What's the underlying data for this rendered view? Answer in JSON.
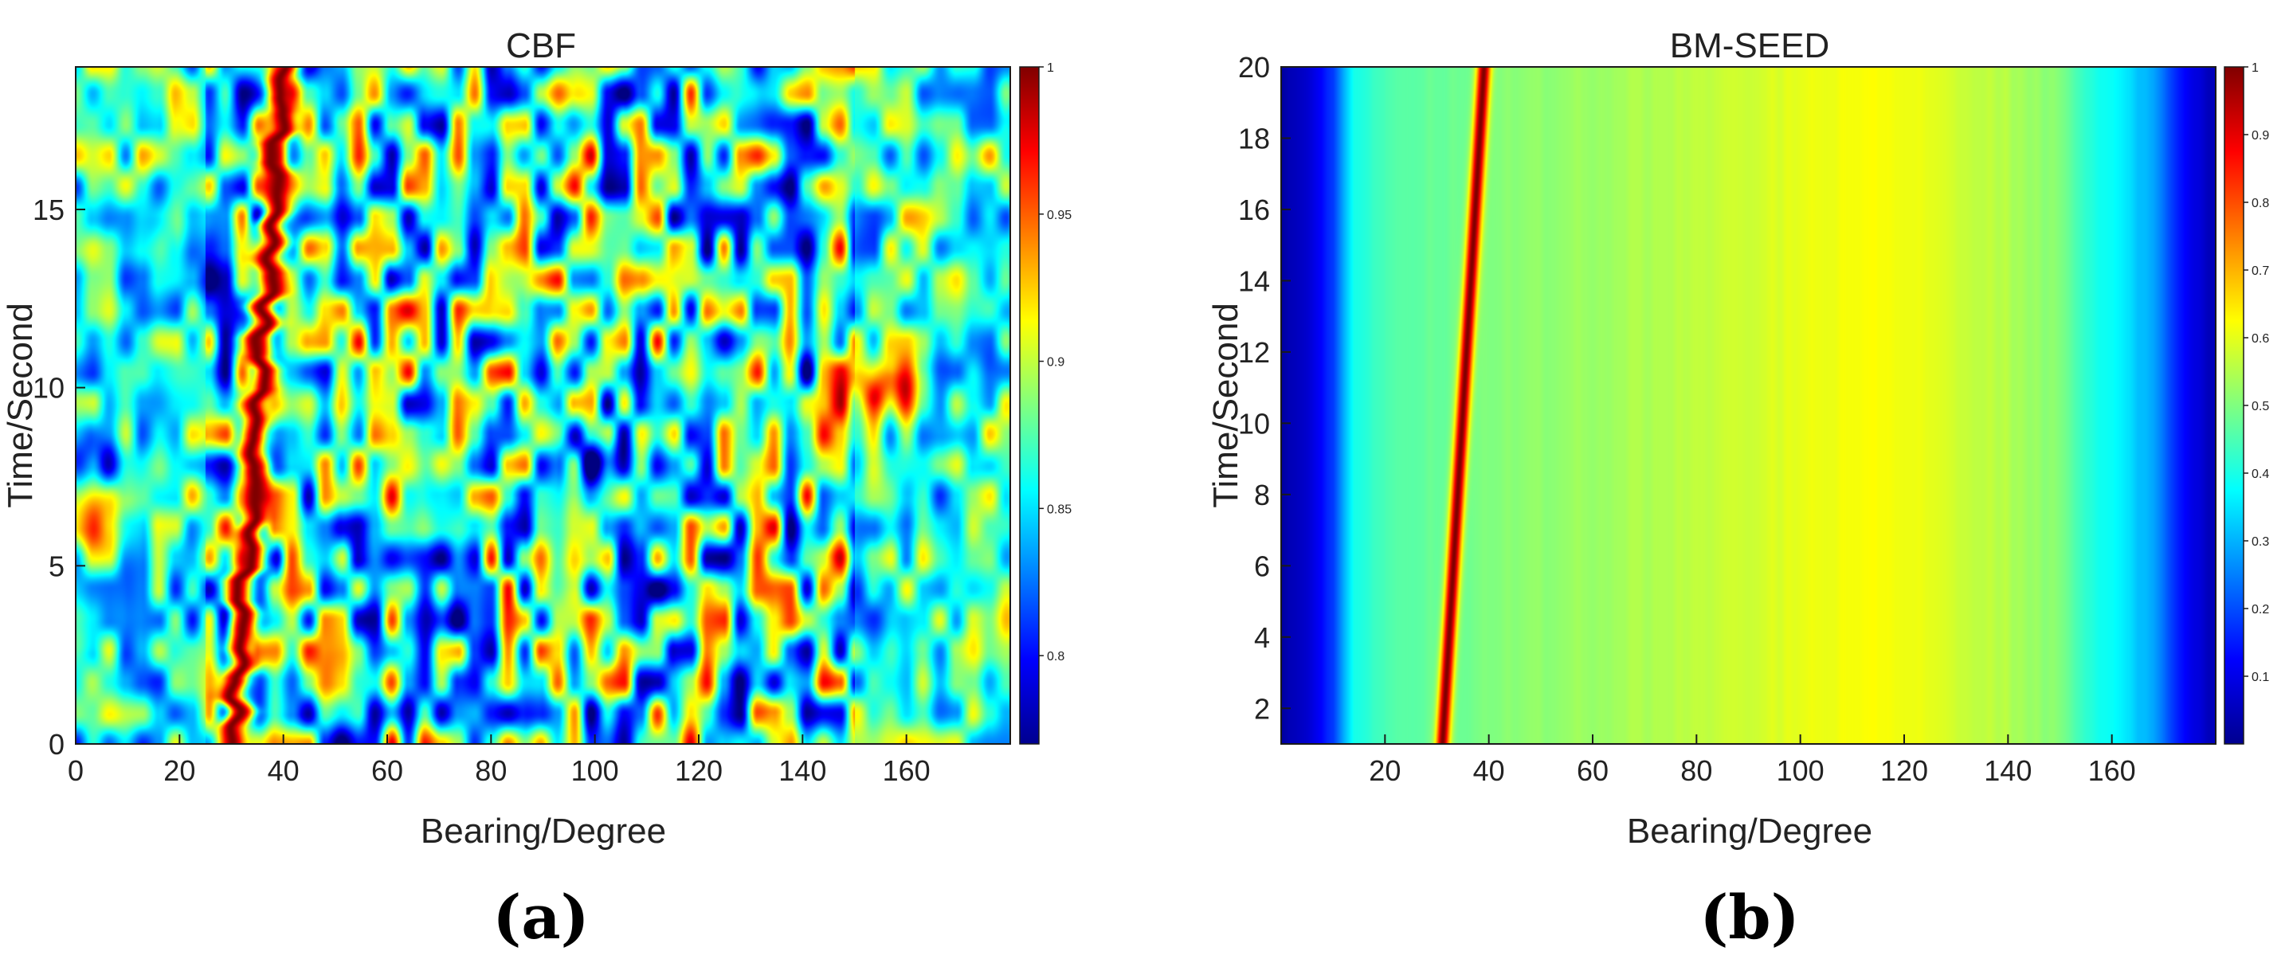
{
  "colors": {
    "colormap": "jet",
    "axis": "#1a1a1a",
    "background": "#ffffff"
  },
  "chart_data": [
    {
      "type": "heatmap",
      "panel_label": "(a)",
      "title": "CBF",
      "xlabel": "Bearing/Degree",
      "ylabel": "Time/Second",
      "xlim": [
        0,
        180
      ],
      "ylim": [
        0,
        19
      ],
      "xticks": [
        0,
        20,
        40,
        60,
        80,
        100,
        120,
        140,
        160
      ],
      "yticks": [
        0,
        5,
        10,
        15
      ],
      "clim": [
        0.77,
        1.0
      ],
      "colorbar_ticks": [
        0.8,
        0.85,
        0.9,
        0.95,
        1
      ],
      "colorbar_labels": [
        "0.8",
        "0.85",
        "0.9",
        "0.95",
        "1"
      ],
      "grid": false,
      "legend": "none",
      "description_peak_track": {
        "bearing_at_t0": 30,
        "bearing_at_tmax": 40
      },
      "features": [
        {
          "label": "bright track",
          "bearing_start": 30,
          "bearing_end": 40
        },
        {
          "label": "hot spot",
          "bearing": 156,
          "time": 10,
          "value": 0.97
        },
        {
          "label": "hot spot",
          "bearing": 5,
          "time": 6,
          "value": 0.95
        },
        {
          "label": "cold spot",
          "bearing": 2,
          "time": 8,
          "value": 0.81
        },
        {
          "label": "cold spot",
          "bearing": 100,
          "time": 8,
          "value": 0.79
        }
      ]
    },
    {
      "type": "heatmap",
      "panel_label": "(b)",
      "title": "BM-SEED",
      "xlabel": "Bearing/Degree",
      "ylabel": "Time/Second",
      "xlim": [
        0,
        180
      ],
      "ylim": [
        1,
        20
      ],
      "xticks": [
        20,
        40,
        60,
        80,
        100,
        120,
        140,
        160
      ],
      "yticks": [
        2,
        4,
        6,
        8,
        10,
        12,
        14,
        16,
        18,
        20
      ],
      "clim": [
        0,
        1
      ],
      "colorbar_ticks": [
        0.1,
        0.2,
        0.3,
        0.4,
        0.5,
        0.6,
        0.7,
        0.8,
        0.9,
        1
      ],
      "colorbar_labels": [
        "0.1",
        "0.2",
        "0.3",
        "0.4",
        "0.5",
        "0.6",
        "0.7",
        "0.8",
        "0.9",
        "1"
      ],
      "grid": false,
      "legend": "none",
      "bearing_profile": {
        "bearing": [
          0,
          5,
          10,
          14,
          20,
          40,
          60,
          80,
          100,
          110,
          120,
          140,
          150,
          155,
          160,
          168,
          174,
          180
        ],
        "value": [
          0.03,
          0.08,
          0.18,
          0.4,
          0.45,
          0.5,
          0.53,
          0.56,
          0.6,
          0.62,
          0.61,
          0.55,
          0.5,
          0.42,
          0.38,
          0.28,
          0.12,
          0.05
        ]
      },
      "peak_track": {
        "bearing_at_tmin": 31,
        "bearing_at_tmax": 39,
        "value": 1.0
      }
    }
  ]
}
